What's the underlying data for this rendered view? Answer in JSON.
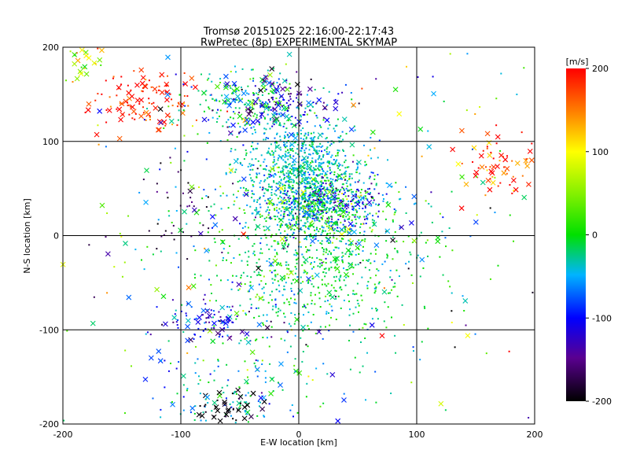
{
  "chart_data": {
    "type": "scatter",
    "title": "Tromsø 20151025 22:16:00-22:17:43",
    "subtitle": "RwPretec (8p) EXPERIMENTAL SKYMAP",
    "xlabel": "E-W location [km]",
    "ylabel": "N-S location [km]",
    "xlim": [
      -200,
      200
    ],
    "ylim": [
      -200,
      200
    ],
    "xticks": [
      "-200",
      "-100",
      "0",
      "100",
      "200"
    ],
    "yticks": [
      "-200",
      "-100",
      "0",
      "100",
      "200"
    ],
    "grid": true,
    "colorbar": {
      "label": "[m/s]",
      "range": [
        -200,
        200
      ],
      "ticks": [
        "-200",
        "-100",
        "0",
        "100",
        "200"
      ]
    },
    "markers": [
      "dot",
      "x"
    ],
    "clusters": [
      {
        "x": -130,
        "y": 145,
        "sx": 25,
        "sy": 18,
        "v": 185,
        "sv": 25,
        "n": 120,
        "xfrac": 0.35
      },
      {
        "x": -185,
        "y": 185,
        "sx": 10,
        "sy": 10,
        "v": 80,
        "sv": 40,
        "n": 30,
        "xfrac": 0.5
      },
      {
        "x": -45,
        "y": 140,
        "sx": 25,
        "sy": 18,
        "v": -10,
        "sv": 40,
        "n": 200,
        "xfrac": 0.2
      },
      {
        "x": -15,
        "y": 140,
        "sx": 25,
        "sy": 15,
        "v": -130,
        "sv": 30,
        "n": 130,
        "xfrac": 0.3
      },
      {
        "x": 0,
        "y": 75,
        "sx": 25,
        "sy": 25,
        "v": -35,
        "sv": 20,
        "n": 700,
        "xfrac": 0.03
      },
      {
        "x": 15,
        "y": 30,
        "sx": 25,
        "sy": 18,
        "v": -30,
        "sv": 50,
        "n": 700,
        "xfrac": 0.03
      },
      {
        "x": 35,
        "y": 40,
        "sx": 20,
        "sy": 15,
        "v": -120,
        "sv": 30,
        "n": 120,
        "xfrac": 0.05
      },
      {
        "x": 15,
        "y": -30,
        "sx": 45,
        "sy": 40,
        "v": -10,
        "sv": 25,
        "n": 700,
        "xfrac": 0.03
      },
      {
        "x": -70,
        "y": -90,
        "sx": 25,
        "sy": 10,
        "v": -100,
        "sv": 40,
        "n": 90,
        "xfrac": 0.3
      },
      {
        "x": -60,
        "y": -165,
        "sx": 30,
        "sy": 25,
        "v": -40,
        "sv": 40,
        "n": 120,
        "xfrac": 0.1
      },
      {
        "x": -60,
        "y": -185,
        "sx": 15,
        "sy": 10,
        "v": -200,
        "sv": 10,
        "n": 40,
        "xfrac": 0.6
      },
      {
        "x": 165,
        "y": 75,
        "sx": 20,
        "sy": 15,
        "v": 170,
        "sv": 40,
        "n": 70,
        "xfrac": 0.5
      },
      {
        "x": -100,
        "y": 30,
        "sx": 15,
        "sy": 25,
        "v": -180,
        "sv": 20,
        "n": 35,
        "xfrac": 0.1
      },
      {
        "x": 0,
        "y": 0,
        "sx": 110,
        "sy": 110,
        "v": -20,
        "sv": 80,
        "n": 450,
        "xfrac": 0.25
      }
    ]
  }
}
